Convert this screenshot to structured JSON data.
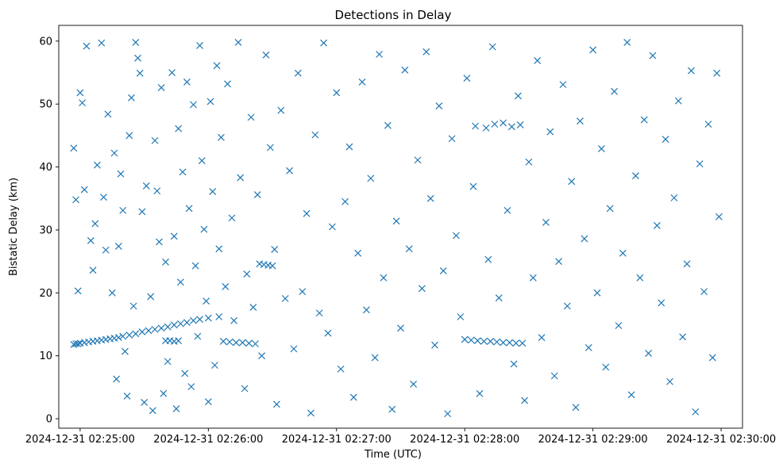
{
  "chart_data": {
    "type": "scatter",
    "title": "Detections in Delay",
    "xlabel": "Time (UTC)",
    "ylabel": "Bistatic Delay (km)",
    "marker": "x",
    "color": "#1f77b4",
    "grid": false,
    "legend": "none",
    "x_unit": "datetime",
    "xlim": [
      "2024-12-31 02:24:50",
      "2024-12-31 02:30:10"
    ],
    "ylim": [
      -1.5,
      62.5
    ],
    "xticks": [
      "2024-12-31 02:25:00",
      "2024-12-31 02:26:00",
      "2024-12-31 02:27:00",
      "2024-12-31 02:28:00",
      "2024-12-31 02:29:00",
      "2024-12-31 02:30:00"
    ],
    "yticks": [
      0,
      10,
      20,
      30,
      40,
      50,
      60
    ],
    "series": [
      {
        "points": [
          [
            "2024-12-31 02:24:57",
            11.8
          ],
          [
            "2024-12-31 02:24:58",
            11.9
          ],
          [
            "2024-12-31 02:24:59",
            11.9
          ],
          [
            "2024-12-31 02:25:00",
            12.0
          ],
          [
            "2024-12-31 02:25:02",
            12.1
          ],
          [
            "2024-12-31 02:25:04",
            12.2
          ],
          [
            "2024-12-31 02:25:06",
            12.3
          ],
          [
            "2024-12-31 02:25:08",
            12.4
          ],
          [
            "2024-12-31 02:25:10",
            12.5
          ],
          [
            "2024-12-31 02:25:12",
            12.6
          ],
          [
            "2024-12-31 02:25:14",
            12.7
          ],
          [
            "2024-12-31 02:25:16",
            12.8
          ],
          [
            "2024-12-31 02:25:18",
            12.9
          ],
          [
            "2024-12-31 02:25:20",
            13.1
          ],
          [
            "2024-12-31 02:25:23",
            13.3
          ],
          [
            "2024-12-31 02:25:26",
            13.5
          ],
          [
            "2024-12-31 02:25:29",
            13.8
          ],
          [
            "2024-12-31 02:25:32",
            14.0
          ],
          [
            "2024-12-31 02:25:35",
            14.2
          ],
          [
            "2024-12-31 02:25:38",
            14.4
          ],
          [
            "2024-12-31 02:25:41",
            14.6
          ],
          [
            "2024-12-31 02:25:44",
            14.9
          ],
          [
            "2024-12-31 02:25:47",
            15.1
          ],
          [
            "2024-12-31 02:25:50",
            15.3
          ],
          [
            "2024-12-31 02:25:53",
            15.6
          ],
          [
            "2024-12-31 02:25:56",
            15.8
          ],
          [
            "2024-12-31 02:26:00",
            16.0
          ],
          [
            "2024-12-31 02:26:05",
            16.2
          ],
          [
            "2024-12-31 02:25:40",
            12.4
          ],
          [
            "2024-12-31 02:25:42",
            12.4
          ],
          [
            "2024-12-31 02:25:44",
            12.3
          ],
          [
            "2024-12-31 02:25:46",
            12.4
          ],
          [
            "2024-12-31 02:26:07",
            12.3
          ],
          [
            "2024-12-31 02:26:10",
            12.2
          ],
          [
            "2024-12-31 02:26:13",
            12.1
          ],
          [
            "2024-12-31 02:26:16",
            12.1
          ],
          [
            "2024-12-31 02:26:19",
            12.0
          ],
          [
            "2024-12-31 02:26:22",
            11.9
          ],
          [
            "2024-12-31 02:26:24",
            24.6
          ],
          [
            "2024-12-31 02:26:26",
            24.5
          ],
          [
            "2024-12-31 02:26:28",
            24.4
          ],
          [
            "2024-12-31 02:26:30",
            24.3
          ],
          [
            "2024-12-31 02:28:00",
            12.6
          ],
          [
            "2024-12-31 02:28:03",
            12.5
          ],
          [
            "2024-12-31 02:28:06",
            12.4
          ],
          [
            "2024-12-31 02:28:09",
            12.3
          ],
          [
            "2024-12-31 02:28:12",
            12.3
          ],
          [
            "2024-12-31 02:28:15",
            12.2
          ],
          [
            "2024-12-31 02:28:18",
            12.1
          ],
          [
            "2024-12-31 02:28:21",
            12.1
          ],
          [
            "2024-12-31 02:28:24",
            12.0
          ],
          [
            "2024-12-31 02:28:27",
            12.0
          ],
          [
            "2024-12-31 02:28:05",
            46.5
          ],
          [
            "2024-12-31 02:28:10",
            46.2
          ],
          [
            "2024-12-31 02:28:14",
            46.8
          ],
          [
            "2024-12-31 02:28:18",
            47.0
          ],
          [
            "2024-12-31 02:28:22",
            46.4
          ],
          [
            "2024-12-31 02:28:26",
            46.7
          ],
          [
            "2024-12-31 02:24:57",
            43.0
          ],
          [
            "2024-12-31 02:24:58",
            34.8
          ],
          [
            "2024-12-31 02:24:59",
            20.3
          ],
          [
            "2024-12-31 02:25:00",
            51.8
          ],
          [
            "2024-12-31 02:25:01",
            50.2
          ],
          [
            "2024-12-31 02:25:02",
            36.4
          ],
          [
            "2024-12-31 02:25:03",
            59.2
          ],
          [
            "2024-12-31 02:25:05",
            28.3
          ],
          [
            "2024-12-31 02:25:06",
            23.6
          ],
          [
            "2024-12-31 02:25:07",
            31.0
          ],
          [
            "2024-12-31 02:25:08",
            40.3
          ],
          [
            "2024-12-31 02:25:10",
            59.7
          ],
          [
            "2024-12-31 02:25:11",
            35.2
          ],
          [
            "2024-12-31 02:25:12",
            26.8
          ],
          [
            "2024-12-31 02:25:13",
            48.4
          ],
          [
            "2024-12-31 02:25:15",
            20.0
          ],
          [
            "2024-12-31 02:25:16",
            42.2
          ],
          [
            "2024-12-31 02:25:17",
            6.3
          ],
          [
            "2024-12-31 02:25:18",
            27.4
          ],
          [
            "2024-12-31 02:25:19",
            38.9
          ],
          [
            "2024-12-31 02:25:20",
            33.1
          ],
          [
            "2024-12-31 02:25:21",
            10.7
          ],
          [
            "2024-12-31 02:25:22",
            3.6
          ],
          [
            "2024-12-31 02:25:23",
            45.0
          ],
          [
            "2024-12-31 02:25:24",
            51.0
          ],
          [
            "2024-12-31 02:25:25",
            17.9
          ],
          [
            "2024-12-31 02:25:26",
            59.8
          ],
          [
            "2024-12-31 02:25:27",
            57.3
          ],
          [
            "2024-12-31 02:25:28",
            54.9
          ],
          [
            "2024-12-31 02:25:29",
            32.9
          ],
          [
            "2024-12-31 02:25:30",
            2.6
          ],
          [
            "2024-12-31 02:25:31",
            37.0
          ],
          [
            "2024-12-31 02:25:33",
            19.4
          ],
          [
            "2024-12-31 02:25:34",
            1.3
          ],
          [
            "2024-12-31 02:25:35",
            44.2
          ],
          [
            "2024-12-31 02:25:36",
            36.2
          ],
          [
            "2024-12-31 02:25:37",
            28.1
          ],
          [
            "2024-12-31 02:25:38",
            52.6
          ],
          [
            "2024-12-31 02:25:39",
            4.0
          ],
          [
            "2024-12-31 02:25:40",
            24.9
          ],
          [
            "2024-12-31 02:25:41",
            9.1
          ],
          [
            "2024-12-31 02:25:43",
            55.0
          ],
          [
            "2024-12-31 02:25:44",
            29.0
          ],
          [
            "2024-12-31 02:25:45",
            1.6
          ],
          [
            "2024-12-31 02:25:46",
            46.1
          ],
          [
            "2024-12-31 02:25:47",
            21.7
          ],
          [
            "2024-12-31 02:25:48",
            39.2
          ],
          [
            "2024-12-31 02:25:49",
            7.2
          ],
          [
            "2024-12-31 02:25:50",
            53.5
          ],
          [
            "2024-12-31 02:25:51",
            33.4
          ],
          [
            "2024-12-31 02:25:52",
            5.1
          ],
          [
            "2024-12-31 02:25:53",
            49.9
          ],
          [
            "2024-12-31 02:25:54",
            24.3
          ],
          [
            "2024-12-31 02:25:55",
            13.1
          ],
          [
            "2024-12-31 02:25:56",
            59.3
          ],
          [
            "2024-12-31 02:25:57",
            41.0
          ],
          [
            "2024-12-31 02:25:58",
            30.1
          ],
          [
            "2024-12-31 02:25:59",
            18.7
          ],
          [
            "2024-12-31 02:26:00",
            2.7
          ],
          [
            "2024-12-31 02:26:01",
            50.4
          ],
          [
            "2024-12-31 02:26:02",
            36.1
          ],
          [
            "2024-12-31 02:26:03",
            8.5
          ],
          [
            "2024-12-31 02:26:04",
            56.1
          ],
          [
            "2024-12-31 02:26:05",
            27.0
          ],
          [
            "2024-12-31 02:26:06",
            44.7
          ],
          [
            "2024-12-31 02:26:08",
            21.0
          ],
          [
            "2024-12-31 02:26:09",
            53.2
          ],
          [
            "2024-12-31 02:26:11",
            31.9
          ],
          [
            "2024-12-31 02:26:12",
            15.6
          ],
          [
            "2024-12-31 02:26:14",
            59.8
          ],
          [
            "2024-12-31 02:26:15",
            38.3
          ],
          [
            "2024-12-31 02:26:17",
            4.8
          ],
          [
            "2024-12-31 02:26:18",
            23.0
          ],
          [
            "2024-12-31 02:26:20",
            47.9
          ],
          [
            "2024-12-31 02:26:21",
            17.7
          ],
          [
            "2024-12-31 02:26:23",
            35.6
          ],
          [
            "2024-12-31 02:26:25",
            10.0
          ],
          [
            "2024-12-31 02:26:27",
            57.8
          ],
          [
            "2024-12-31 02:26:29",
            43.1
          ],
          [
            "2024-12-31 02:26:31",
            26.9
          ],
          [
            "2024-12-31 02:26:32",
            2.3
          ],
          [
            "2024-12-31 02:26:34",
            49.0
          ],
          [
            "2024-12-31 02:26:36",
            19.1
          ],
          [
            "2024-12-31 02:26:38",
            39.4
          ],
          [
            "2024-12-31 02:26:40",
            11.1
          ],
          [
            "2024-12-31 02:26:42",
            54.9
          ],
          [
            "2024-12-31 02:26:44",
            20.2
          ],
          [
            "2024-12-31 02:26:46",
            32.6
          ],
          [
            "2024-12-31 02:26:48",
            0.9
          ],
          [
            "2024-12-31 02:26:50",
            45.1
          ],
          [
            "2024-12-31 02:26:52",
            16.8
          ],
          [
            "2024-12-31 02:26:54",
            59.7
          ],
          [
            "2024-12-31 02:26:56",
            13.6
          ],
          [
            "2024-12-31 02:26:58",
            30.5
          ],
          [
            "2024-12-31 02:27:00",
            51.8
          ],
          [
            "2024-12-31 02:27:02",
            7.9
          ],
          [
            "2024-12-31 02:27:04",
            34.5
          ],
          [
            "2024-12-31 02:27:06",
            43.2
          ],
          [
            "2024-12-31 02:27:08",
            3.4
          ],
          [
            "2024-12-31 02:27:10",
            26.3
          ],
          [
            "2024-12-31 02:27:12",
            53.5
          ],
          [
            "2024-12-31 02:27:14",
            17.3
          ],
          [
            "2024-12-31 02:27:16",
            38.2
          ],
          [
            "2024-12-31 02:27:18",
            9.7
          ],
          [
            "2024-12-31 02:27:20",
            57.9
          ],
          [
            "2024-12-31 02:27:22",
            22.4
          ],
          [
            "2024-12-31 02:27:24",
            46.6
          ],
          [
            "2024-12-31 02:27:26",
            1.5
          ],
          [
            "2024-12-31 02:27:28",
            31.4
          ],
          [
            "2024-12-31 02:27:30",
            14.4
          ],
          [
            "2024-12-31 02:27:32",
            55.4
          ],
          [
            "2024-12-31 02:27:34",
            27.0
          ],
          [
            "2024-12-31 02:27:36",
            5.5
          ],
          [
            "2024-12-31 02:27:38",
            41.1
          ],
          [
            "2024-12-31 02:27:40",
            20.7
          ],
          [
            "2024-12-31 02:27:42",
            58.3
          ],
          [
            "2024-12-31 02:27:44",
            35.0
          ],
          [
            "2024-12-31 02:27:46",
            11.7
          ],
          [
            "2024-12-31 02:27:48",
            49.7
          ],
          [
            "2024-12-31 02:27:50",
            23.5
          ],
          [
            "2024-12-31 02:27:52",
            0.8
          ],
          [
            "2024-12-31 02:27:54",
            44.5
          ],
          [
            "2024-12-31 02:27:56",
            29.1
          ],
          [
            "2024-12-31 02:27:58",
            16.2
          ],
          [
            "2024-12-31 02:28:01",
            54.1
          ],
          [
            "2024-12-31 02:28:04",
            36.9
          ],
          [
            "2024-12-31 02:28:07",
            4.0
          ],
          [
            "2024-12-31 02:28:11",
            25.3
          ],
          [
            "2024-12-31 02:28:13",
            59.1
          ],
          [
            "2024-12-31 02:28:16",
            19.2
          ],
          [
            "2024-12-31 02:28:20",
            33.1
          ],
          [
            "2024-12-31 02:28:23",
            8.7
          ],
          [
            "2024-12-31 02:28:25",
            51.3
          ],
          [
            "2024-12-31 02:28:28",
            2.9
          ],
          [
            "2024-12-31 02:28:30",
            40.8
          ],
          [
            "2024-12-31 02:28:32",
            22.4
          ],
          [
            "2024-12-31 02:28:34",
            56.9
          ],
          [
            "2024-12-31 02:28:36",
            12.9
          ],
          [
            "2024-12-31 02:28:38",
            31.2
          ],
          [
            "2024-12-31 02:28:40",
            45.6
          ],
          [
            "2024-12-31 02:28:42",
            6.8
          ],
          [
            "2024-12-31 02:28:44",
            25.0
          ],
          [
            "2024-12-31 02:28:46",
            53.1
          ],
          [
            "2024-12-31 02:28:48",
            17.9
          ],
          [
            "2024-12-31 02:28:50",
            37.7
          ],
          [
            "2024-12-31 02:28:52",
            1.8
          ],
          [
            "2024-12-31 02:28:54",
            47.3
          ],
          [
            "2024-12-31 02:28:56",
            28.6
          ],
          [
            "2024-12-31 02:28:58",
            11.3
          ],
          [
            "2024-12-31 02:29:00",
            58.6
          ],
          [
            "2024-12-31 02:29:02",
            20.0
          ],
          [
            "2024-12-31 02:29:04",
            42.9
          ],
          [
            "2024-12-31 02:29:06",
            8.2
          ],
          [
            "2024-12-31 02:29:08",
            33.4
          ],
          [
            "2024-12-31 02:29:10",
            52.0
          ],
          [
            "2024-12-31 02:29:12",
            14.8
          ],
          [
            "2024-12-31 02:29:14",
            26.3
          ],
          [
            "2024-12-31 02:29:16",
            59.8
          ],
          [
            "2024-12-31 02:29:18",
            3.8
          ],
          [
            "2024-12-31 02:29:20",
            38.6
          ],
          [
            "2024-12-31 02:29:22",
            22.4
          ],
          [
            "2024-12-31 02:29:24",
            47.5
          ],
          [
            "2024-12-31 02:29:26",
            10.4
          ],
          [
            "2024-12-31 02:29:28",
            57.7
          ],
          [
            "2024-12-31 02:29:30",
            30.7
          ],
          [
            "2024-12-31 02:29:32",
            18.4
          ],
          [
            "2024-12-31 02:29:34",
            44.4
          ],
          [
            "2024-12-31 02:29:36",
            5.9
          ],
          [
            "2024-12-31 02:29:38",
            35.1
          ],
          [
            "2024-12-31 02:29:40",
            50.5
          ],
          [
            "2024-12-31 02:29:42",
            13.0
          ],
          [
            "2024-12-31 02:29:44",
            24.6
          ],
          [
            "2024-12-31 02:29:46",
            55.3
          ],
          [
            "2024-12-31 02:29:48",
            1.1
          ],
          [
            "2024-12-31 02:29:50",
            40.5
          ],
          [
            "2024-12-31 02:29:52",
            20.2
          ],
          [
            "2024-12-31 02:29:54",
            46.8
          ],
          [
            "2024-12-31 02:29:56",
            9.7
          ],
          [
            "2024-12-31 02:29:58",
            54.9
          ],
          [
            "2024-12-31 02:29:59",
            32.1
          ]
        ]
      }
    ]
  }
}
